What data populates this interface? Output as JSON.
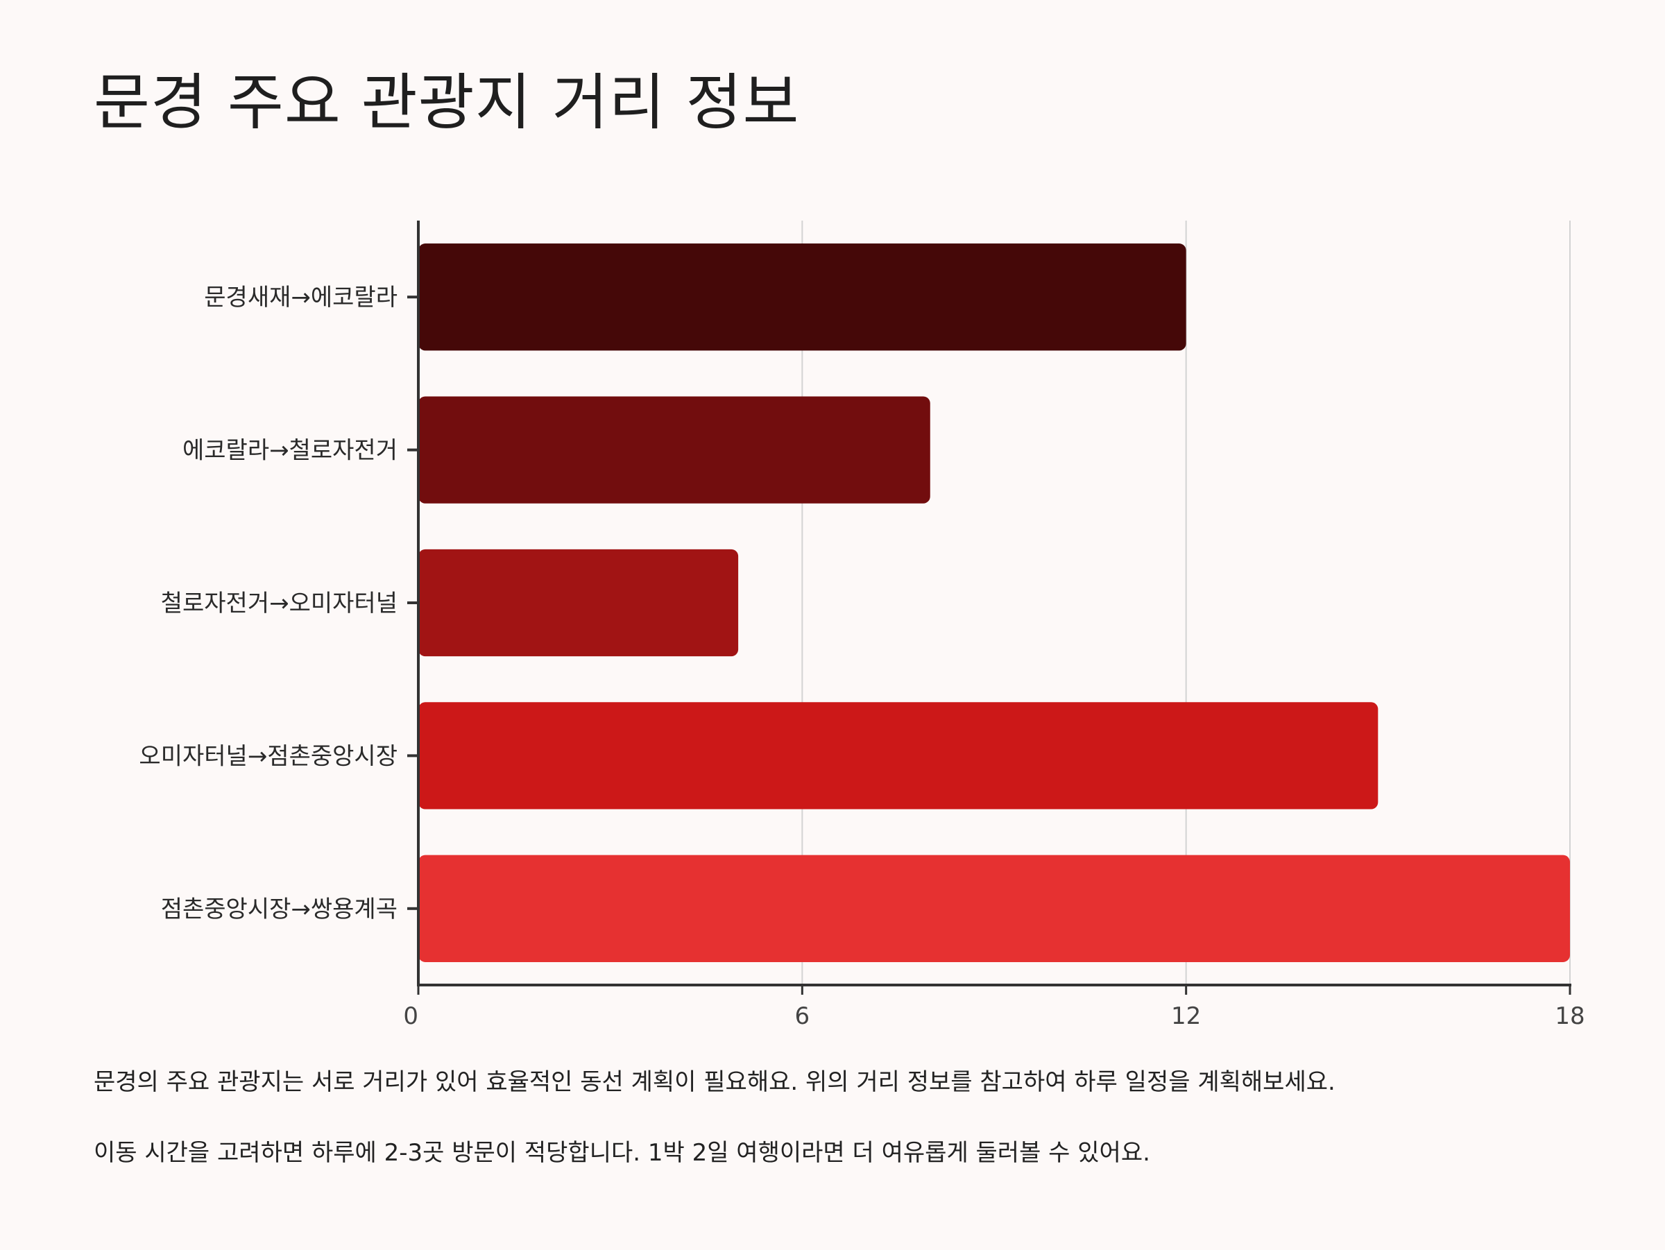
{
  "title": "문경 주요 관광지 거리 정보",
  "captions": [
    "문경의 주요 관광지는 서로 거리가 있어 효율적인 동선 계획이 필요해요. 위의 거리 정보를 참고하여 하루 일정을 계획해보세요.",
    "이동 시간을 고려하면 하루에 2-3곳 방문이 적당합니다. 1박 2일 여행이라면 더 여유롭게 둘러볼 수 있어요."
  ],
  "chart_data": {
    "type": "bar",
    "orientation": "horizontal",
    "categories": [
      "문경새재→에코랄라",
      "에코랄라→철로자전거",
      "철로자전거→오미자터널",
      "오미자터널→점촌중앙시장",
      "점촌중앙시장→쌍용계곡"
    ],
    "values": [
      12,
      8,
      5,
      15,
      18
    ],
    "colors": [
      "#450808",
      "#720d0e",
      "#a11414",
      "#cc1818",
      "#e63131"
    ],
    "xlim": [
      0,
      18
    ],
    "xticks": [
      0,
      6,
      12,
      18
    ],
    "xtick_labels": [
      "0",
      "6",
      "12",
      "18"
    ],
    "xlabel": "",
    "ylabel": "",
    "grid": "vertical",
    "legend": "none"
  }
}
